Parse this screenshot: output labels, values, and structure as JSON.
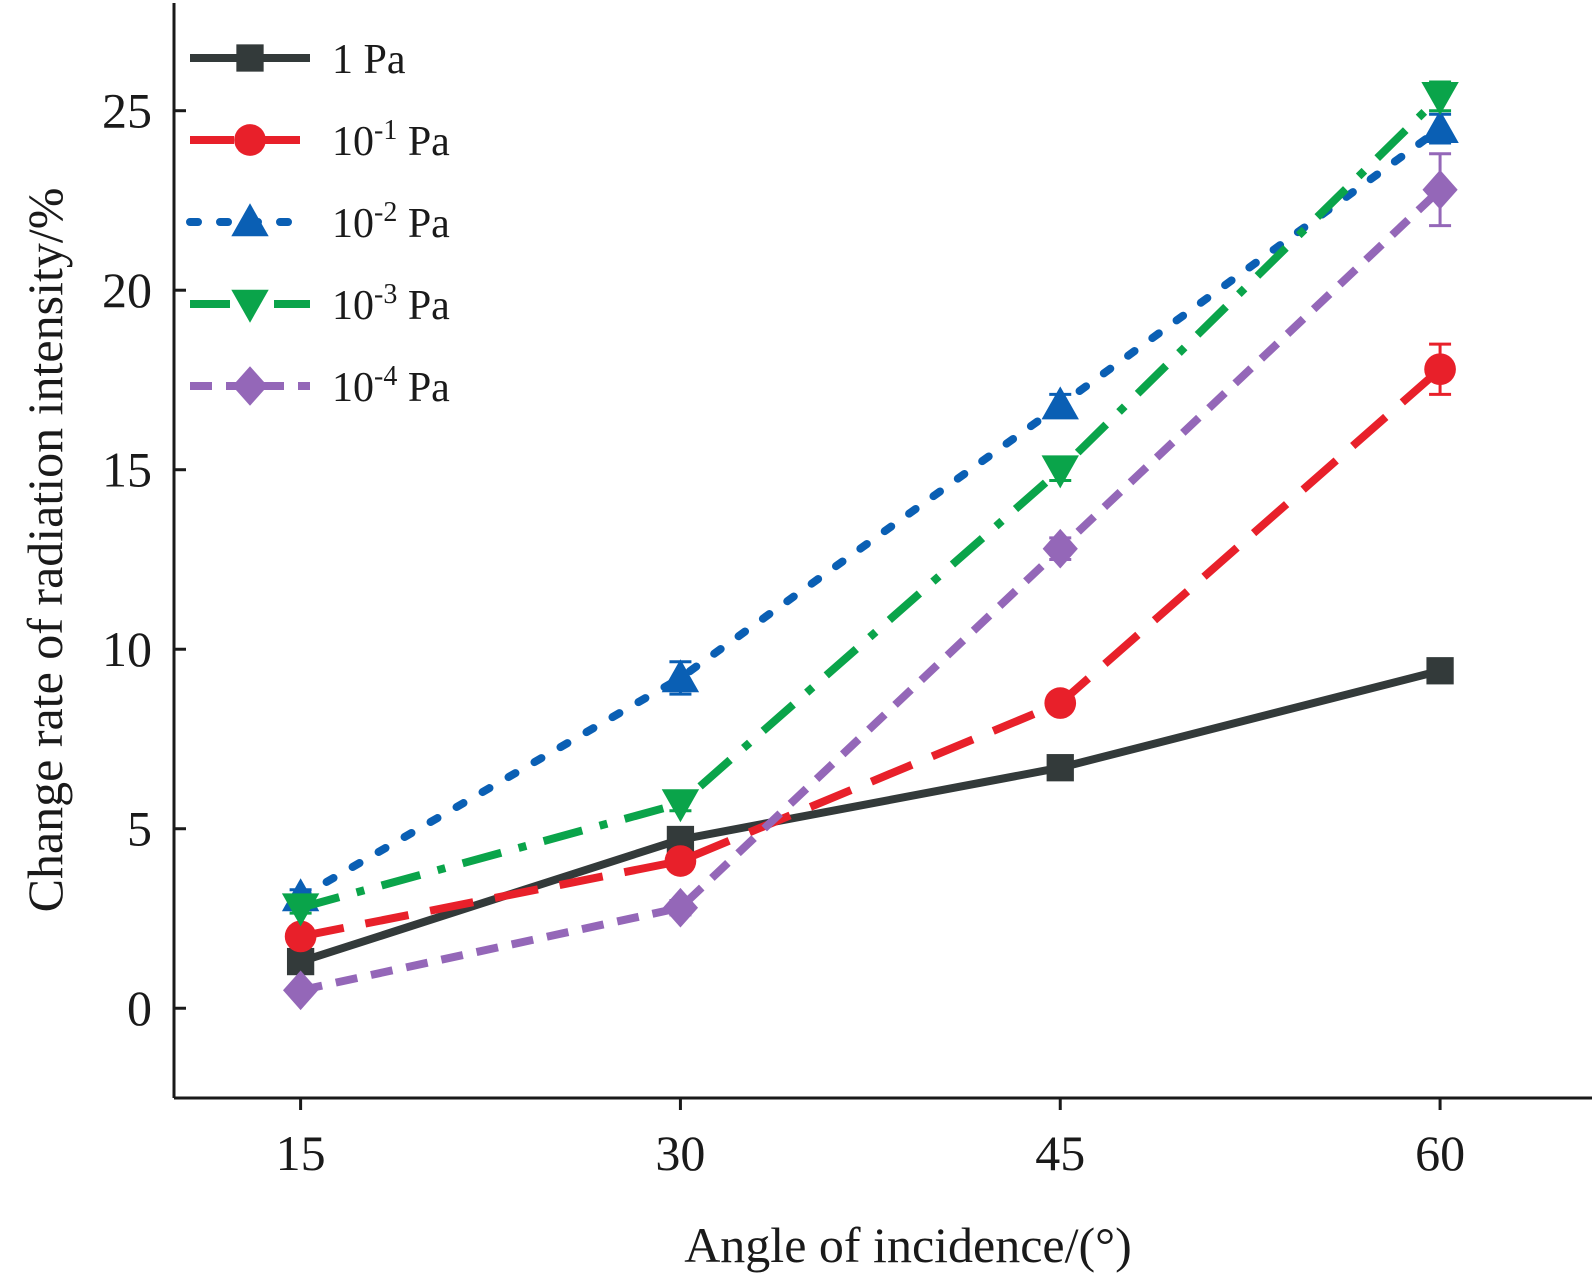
{
  "chart_data": {
    "type": "line",
    "title": "",
    "xlabel": "Angle of incidence/(°)",
    "ylabel": "Change rate of radiation intensity/%",
    "x": [
      15,
      30,
      45,
      60
    ],
    "xlim": [
      10,
      66
    ],
    "ylim": [
      -2.5,
      28
    ],
    "xticks": [
      15,
      30,
      45,
      60
    ],
    "yticks": [
      0,
      5,
      10,
      15,
      20,
      25
    ],
    "grid": false,
    "legend_position": "top-left",
    "series": [
      {
        "name": "1 Pa",
        "base": "1",
        "exp": "",
        "unit": " Pa",
        "values": [
          1.3,
          4.7,
          6.7,
          9.4
        ],
        "errors": [
          0.1,
          0.15,
          0.15,
          0.2
        ],
        "color": "#333a3a",
        "marker": "square",
        "dash": "solid"
      },
      {
        "name": "10-1 Pa",
        "base": "10",
        "exp": "-1",
        "unit": " Pa",
        "values": [
          2.0,
          4.1,
          8.5,
          17.8
        ],
        "errors": [
          0.15,
          0.2,
          0.25,
          0.7
        ],
        "color": "#e8202a",
        "marker": "circle",
        "dash": "dash"
      },
      {
        "name": "10-2 Pa",
        "base": "10",
        "exp": "-2",
        "unit": " Pa",
        "values": [
          3.1,
          9.2,
          16.8,
          24.5
        ],
        "errors": [
          0.2,
          0.45,
          0.3,
          0.4
        ],
        "color": "#0a5fb4",
        "marker": "triangle-up",
        "dash": "dot"
      },
      {
        "name": "10-3 Pa",
        "base": "10",
        "exp": "-3",
        "unit": " Pa",
        "values": [
          2.8,
          5.7,
          15.0,
          25.4
        ],
        "errors": [
          0.15,
          0.2,
          0.3,
          0.4
        ],
        "color": "#0aa44a",
        "marker": "triangle-down",
        "dash": "dashdot"
      },
      {
        "name": "10-4 Pa",
        "base": "10",
        "exp": "-4",
        "unit": " Pa",
        "values": [
          0.5,
          2.8,
          12.8,
          22.8
        ],
        "errors": [
          0.15,
          0.2,
          0.3,
          1.0
        ],
        "color": "#9467b8",
        "marker": "diamond",
        "dash": "shortdash"
      }
    ]
  }
}
